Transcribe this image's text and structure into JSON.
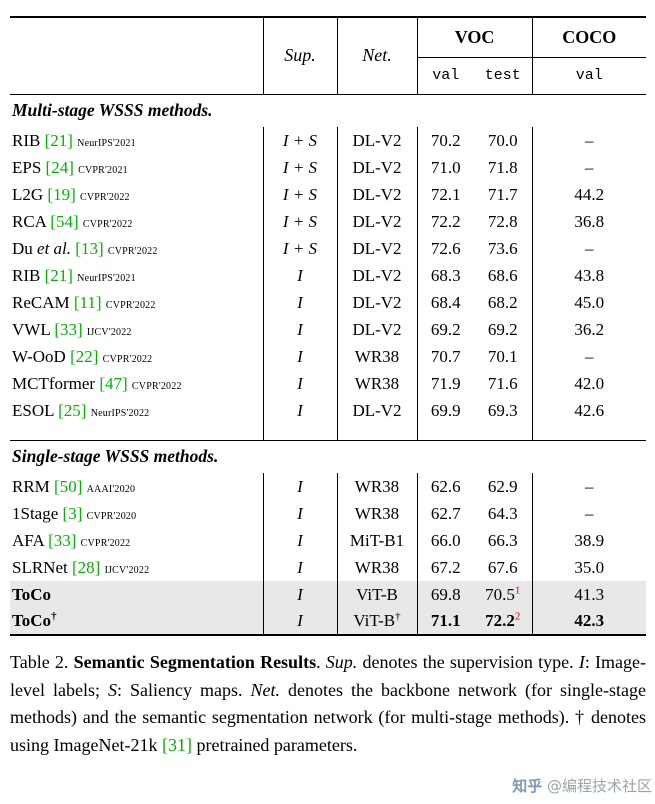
{
  "colors": {
    "citation": "#00b400",
    "rank": "#e60000",
    "hl": "#e8e8e8"
  },
  "table": {
    "headers": {
      "sup": "Sup.",
      "net": "Net.",
      "voc": "VOC",
      "coco": "COCO",
      "voc_val": "val",
      "voc_test": "test",
      "coco_val": "val"
    },
    "sections": [
      {
        "title": "Multi-stage WSSS methods.",
        "rows": [
          {
            "name": "RIB",
            "cite": "[21]",
            "venue": "NeurIPS'2021",
            "sup": "I + S",
            "net": "DL-V2",
            "voc_val": "70.2",
            "voc_test": "70.0",
            "coco": "–"
          },
          {
            "name": "EPS",
            "cite": "[24]",
            "venue": "CVPR'2021",
            "sup": "I + S",
            "net": "DL-V2",
            "voc_val": "71.0",
            "voc_test": "71.8",
            "coco": "–"
          },
          {
            "name": "L2G",
            "cite": "[19]",
            "venue": "CVPR'2022",
            "sup": "I + S",
            "net": "DL-V2",
            "voc_val": "72.1",
            "voc_test": "71.7",
            "coco": "44.2"
          },
          {
            "name": "RCA",
            "cite": "[54]",
            "venue": "CVPR'2022",
            "sup": "I + S",
            "net": "DL-V2",
            "voc_val": "72.2",
            "voc_test": "72.8",
            "coco": "36.8"
          },
          {
            "name": "Du ",
            "name_italic": "et al.",
            "cite": "[13]",
            "venue": "CVPR'2022",
            "sup": "I + S",
            "net": "DL-V2",
            "voc_val": "72.6",
            "voc_test": "73.6",
            "coco": "–"
          },
          {
            "name": "RIB",
            "cite": "[21]",
            "venue": "NeurIPS'2021",
            "sup": "I",
            "net": "DL-V2",
            "voc_val": "68.3",
            "voc_test": "68.6",
            "coco": "43.8"
          },
          {
            "name": "ReCAM",
            "cite": "[11]",
            "venue": "CVPR'2022",
            "sup": "I",
            "net": "DL-V2",
            "voc_val": "68.4",
            "voc_test": "68.2",
            "coco": "45.0"
          },
          {
            "name": "VWL",
            "cite": "[33]",
            "venue": "IJCV'2022",
            "sup": "I",
            "net": "DL-V2",
            "voc_val": "69.2",
            "voc_test": "69.2",
            "coco": "36.2"
          },
          {
            "name": "W-OoD",
            "cite": "[22]",
            "venue": "CVPR'2022",
            "sup": "I",
            "net": "WR38",
            "voc_val": "70.7",
            "voc_test": "70.1",
            "coco": "–"
          },
          {
            "name": "MCTformer",
            "cite": "[47]",
            "venue": "CVPR'2022",
            "sup": "I",
            "net": "WR38",
            "voc_val": "71.9",
            "voc_test": "71.6",
            "coco": "42.0"
          },
          {
            "name": "ESOL",
            "cite": "[25]",
            "venue": "NeurIPS'2022",
            "sup": "I",
            "net": "DL-V2",
            "voc_val": "69.9",
            "voc_test": "69.3",
            "coco": "42.6"
          }
        ]
      },
      {
        "title": "Single-stage WSSS methods.",
        "rows": [
          {
            "name": "RRM",
            "cite": "[50]",
            "venue": "AAAI'2020",
            "sup": "I",
            "net": "WR38",
            "voc_val": "62.6",
            "voc_test": "62.9",
            "coco": "–"
          },
          {
            "name": "1Stage",
            "cite": "[3]",
            "venue": "CVPR'2020",
            "sup": "I",
            "net": "WR38",
            "voc_val": "62.7",
            "voc_test": "64.3",
            "coco": "–"
          },
          {
            "name": "AFA",
            "cite": "[33]",
            "venue": "CVPR'2022",
            "sup": "I",
            "net": "MiT-B1",
            "voc_val": "66.0",
            "voc_test": "66.3",
            "coco": "38.9"
          },
          {
            "name": "SLRNet",
            "cite": "[28]",
            "venue": "IJCV'2022",
            "sup": "I",
            "net": "WR38",
            "voc_val": "67.2",
            "voc_test": "67.6",
            "coco": "35.0"
          },
          {
            "name": "ToCo",
            "bold": true,
            "highlight": true,
            "sup": "I",
            "net": "ViT-B",
            "voc_val": "69.8",
            "voc_test": "70.5",
            "voc_test_sup": "1",
            "coco": "41.3"
          },
          {
            "name": "ToCo",
            "name_sup": "†",
            "bold": true,
            "bold_vals": true,
            "highlight": true,
            "sup": "I",
            "net": "ViT-B",
            "net_sup": "†",
            "voc_val": "71.1",
            "voc_test": "72.2",
            "voc_test_sup": "2",
            "coco": "42.3"
          }
        ]
      }
    ]
  },
  "caption": {
    "parts": [
      "Table 2. ",
      "Semantic Segmentation Results",
      ". ",
      "Sup.",
      " denotes the supervision type. ",
      "I",
      ": Image-level labels; ",
      "S",
      ": Saliency maps. ",
      "Net.",
      " denotes the backbone network (for single-stage methods) and the semantic segmentation network (for multi-stage methods). † denotes using ImageNet-21k ",
      "[31]",
      " pretrained parameters."
    ]
  },
  "watermark": {
    "logo": "知乎",
    "handle": "@编程技术社区"
  }
}
